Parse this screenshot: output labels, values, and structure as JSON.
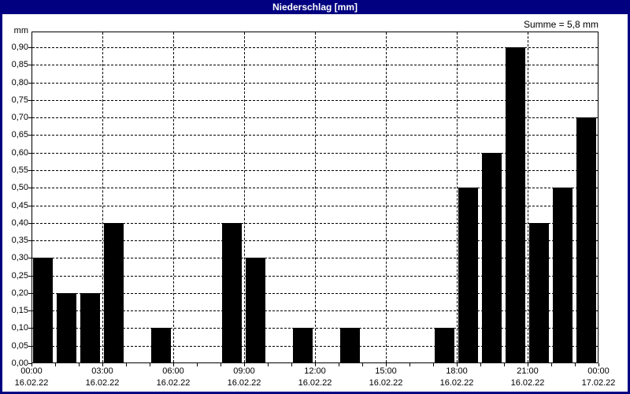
{
  "window": {
    "title": "Niederschlag [mm]"
  },
  "colors": {
    "titlebar": "#000080",
    "window_border": "#000080",
    "title_text": "#ffffff",
    "bar": "#000000",
    "plot_bg": "#ffffff",
    "grid": "#000000"
  },
  "chart_data": {
    "type": "bar",
    "title": "Niederschlag [mm]",
    "y_axis_unit": "mm",
    "sum_annotation": "Summe = 5,8 mm",
    "ylabel": "mm",
    "ylim": [
      0,
      0.945
    ],
    "y_tick_step": 0.05,
    "y_tick_labels": [
      "0,00",
      "0,05",
      "0,10",
      "0,15",
      "0,20",
      "0,25",
      "0,30",
      "0,35",
      "0,40",
      "0,45",
      "0,50",
      "0,55",
      "0,60",
      "0,65",
      "0,70",
      "0,75",
      "0,80",
      "0,85",
      "0,90"
    ],
    "x_hours_total": 24,
    "x_ticks": [
      {
        "hour": 0,
        "time": "00:00",
        "date": "16.02.22"
      },
      {
        "hour": 3,
        "time": "03:00",
        "date": "16.02.22"
      },
      {
        "hour": 6,
        "time": "06:00",
        "date": "16.02.22"
      },
      {
        "hour": 9,
        "time": "09:00",
        "date": "16.02.22"
      },
      {
        "hour": 12,
        "time": "12:00",
        "date": "16.02.22"
      },
      {
        "hour": 15,
        "time": "15:00",
        "date": "16.02.22"
      },
      {
        "hour": 18,
        "time": "18:00",
        "date": "16.02.22"
      },
      {
        "hour": 21,
        "time": "21:00",
        "date": "16.02.22"
      },
      {
        "hour": 24,
        "time": "00:00",
        "date": "17.02.22"
      }
    ],
    "values_hourly_mm": [
      0.3,
      0.2,
      0.2,
      0.4,
      0,
      0.1,
      0,
      0,
      0.4,
      0.3,
      0,
      0.1,
      0,
      0.1,
      0,
      0,
      0,
      0.1,
      0.5,
      0.6,
      0.9,
      0.4,
      0.5,
      0.7
    ],
    "grid": {
      "horizontal": "dashed",
      "vertical": "dashed",
      "vertical_interval_hours": 3
    }
  }
}
